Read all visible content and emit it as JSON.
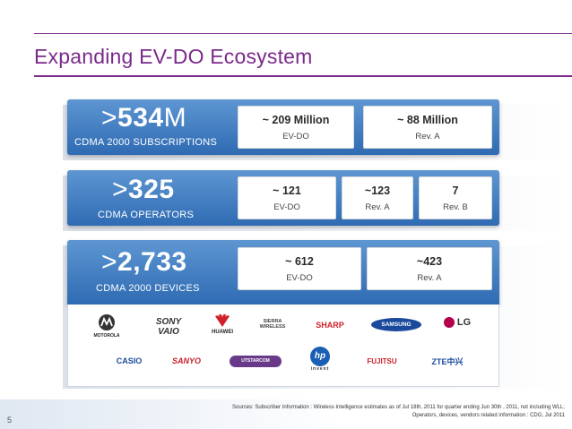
{
  "title": "Expanding EV-DO Ecosystem",
  "rows": [
    {
      "big_prefix": ">",
      "big_value": "534",
      "big_suffix": "M",
      "subtitle": "CDMA 2000 SUBSCRIPTIONS",
      "tiles": [
        {
          "value": "~ 209 Million",
          "label": "EV-DO"
        },
        {
          "value": "~ 88 Million",
          "label": "Rev. A"
        }
      ]
    },
    {
      "big_prefix": ">",
      "big_value": "325",
      "big_suffix": "",
      "subtitle": "CDMA  OPERATORS",
      "tiles": [
        {
          "value": "~ 121",
          "label": "EV-DO"
        },
        {
          "value": "~123",
          "label": "Rev.  A"
        },
        {
          "value": "7",
          "label": "Rev. B"
        }
      ]
    },
    {
      "big_prefix": ">",
      "big_value": "2,733",
      "big_suffix": "",
      "subtitle": "CDMA 2000 DEVICES",
      "tiles": [
        {
          "value": "~ 612",
          "label": "EV-DO"
        },
        {
          "value": "~423",
          "label": "Rev. A"
        }
      ]
    }
  ],
  "logos_row1": [
    "MOTOROLA",
    "SONY VAIO",
    "HUAWEI",
    "SIERRA WIRELESS",
    "SHARP",
    "SAMSUNG",
    "LG"
  ],
  "logos_row2": [
    "CASIO",
    "SANYO",
    "UTSTARCOM",
    "invent",
    "FUJITSU",
    "ZTE中兴"
  ],
  "colors": {
    "accent": "#7a2a8a",
    "band": "#3a78bf",
    "samsung": "#1a4a9c",
    "sharp": "#d0202a",
    "huawei": "#d0202a",
    "lg": "#b5004a"
  },
  "page_number": "5",
  "source_line1": "Sources: Subscriber  Information : Wireless Intelligence estimates as of  Jul 18th,  2011 for quarter ending  Jun 30th , 2011, not including WLL;",
  "source_line2": "Operators, devices, vendors related information : CDG, Jul 2011"
}
